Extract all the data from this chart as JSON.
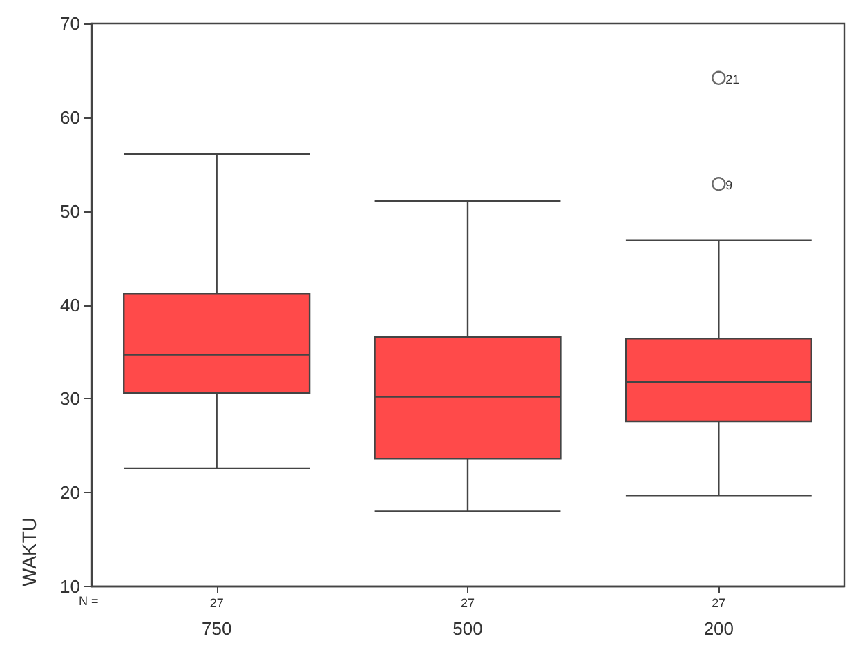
{
  "chart_data": {
    "type": "box",
    "ylabel": "WAKTU",
    "categories": [
      "750",
      "500",
      "200"
    ],
    "series": [
      {
        "color": "#ff4a4a",
        "boxes": [
          {
            "low": 22.6,
            "q1": 30.6,
            "median": 34.7,
            "q3": 41.2,
            "high": 56.1
          },
          {
            "low": 18.0,
            "q1": 23.6,
            "median": 30.2,
            "q3": 36.6,
            "high": 51.1
          },
          {
            "low": 19.7,
            "q1": 27.6,
            "median": 31.8,
            "q3": 36.4,
            "high": 46.9,
            "outliers": [
              52.9,
              64.2
            ]
          }
        ]
      }
    ],
    "ylim": [
      10,
      70
    ],
    "yticks": [
      10,
      20,
      30,
      40,
      50,
      60,
      70
    ],
    "grid": false,
    "annotations": [
      "N =",
      "27",
      "27",
      "27",
      "9",
      "21"
    ]
  }
}
